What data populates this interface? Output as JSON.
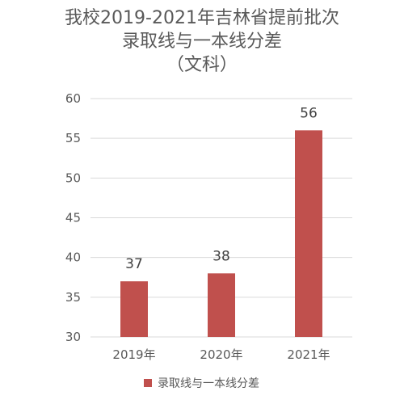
{
  "chart_data": {
    "type": "bar",
    "title_lines": [
      "我校2019-2021年吉林省提前批次",
      "录取线与一本线分差",
      "（文科）"
    ],
    "categories": [
      "2019年",
      "2020年",
      "2021年"
    ],
    "series": [
      {
        "name": "录取线与一本线分差",
        "values": [
          37,
          38,
          56
        ],
        "color": "#C0504D"
      }
    ],
    "ylim": [
      30,
      60
    ],
    "yticks": [
      30,
      35,
      40,
      45,
      50,
      55,
      60
    ],
    "grid": true,
    "legend_position": "bottom",
    "gridline_color": "#D9D9D9"
  }
}
